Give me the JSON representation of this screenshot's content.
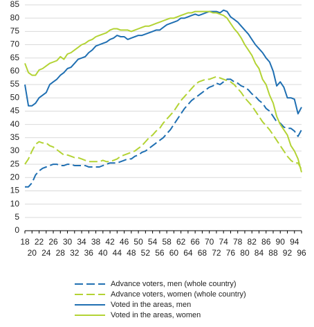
{
  "chart_data": {
    "type": "line",
    "x": [
      18,
      19,
      20,
      21,
      22,
      23,
      24,
      25,
      26,
      27,
      28,
      29,
      30,
      31,
      32,
      33,
      34,
      35,
      36,
      37,
      38,
      39,
      40,
      41,
      42,
      43,
      44,
      45,
      46,
      47,
      48,
      49,
      50,
      51,
      52,
      53,
      54,
      55,
      56,
      57,
      58,
      59,
      60,
      61,
      62,
      63,
      64,
      65,
      66,
      67,
      68,
      69,
      70,
      71,
      72,
      73,
      74,
      75,
      76,
      77,
      78,
      79,
      80,
      81,
      82,
      83,
      84,
      85,
      86,
      87,
      88,
      89,
      90,
      91,
      92,
      93,
      94,
      95,
      96
    ],
    "xlim": [
      18,
      96
    ],
    "xticks": [
      18,
      20,
      22,
      24,
      26,
      28,
      30,
      32,
      34,
      36,
      38,
      40,
      42,
      44,
      46,
      48,
      50,
      52,
      54,
      56,
      58,
      60,
      62,
      64,
      66,
      68,
      70,
      72,
      74,
      76,
      78,
      80,
      82,
      84,
      86,
      88,
      90,
      92,
      94,
      96
    ],
    "ylim": [
      0,
      85
    ],
    "yticks": [
      0,
      5,
      10,
      15,
      20,
      25,
      30,
      35,
      40,
      45,
      50,
      55,
      60,
      65,
      70,
      75,
      80,
      85
    ],
    "grid": true,
    "legend": "bottom",
    "series": [
      {
        "name": "Advance voters, men (whole country)",
        "color": "#1f6fb2",
        "dashed": true,
        "values": [
          16.5,
          16.5,
          18,
          21,
          22.5,
          23.5,
          24,
          24.5,
          25,
          25,
          24.5,
          24.5,
          25,
          25,
          24.5,
          24.5,
          24.5,
          24.5,
          24,
          24,
          24,
          24,
          24.5,
          25,
          25.5,
          25.5,
          25.5,
          26,
          26.5,
          27,
          27,
          28,
          28.5,
          29.5,
          30,
          31,
          32,
          33,
          34,
          35,
          36.5,
          38,
          40,
          42,
          44,
          46,
          47.5,
          49,
          50,
          51,
          52,
          53,
          54,
          54.5,
          55.5,
          55,
          56,
          57,
          57,
          56,
          55.5,
          54.5,
          54,
          53,
          51.5,
          50.5,
          49,
          48,
          46,
          45,
          43,
          41,
          40.5,
          39,
          38.5,
          38.5,
          37.5,
          35.5,
          38
        ]
      },
      {
        "name": "Advance voters, women (whole country)",
        "color": "#b3d334",
        "dashed": true,
        "values": [
          25,
          27,
          30,
          32.5,
          33.5,
          33,
          33,
          32,
          31.5,
          30.5,
          29.5,
          28.5,
          28.5,
          28,
          27.5,
          27.5,
          27,
          26.5,
          26,
          26,
          26,
          26,
          26.5,
          26,
          26,
          26.5,
          27,
          28,
          28.5,
          29,
          29.5,
          30,
          31,
          32,
          33.5,
          35,
          36,
          37.5,
          38.5,
          40.5,
          42,
          43.5,
          45,
          47,
          49,
          50.5,
          52,
          53.5,
          55,
          56,
          56.5,
          57,
          57,
          57.5,
          58,
          57.5,
          57,
          56.5,
          56,
          55,
          53.5,
          52,
          50,
          48.5,
          47,
          45,
          43,
          41,
          39.5,
          38,
          36,
          34,
          32,
          30,
          28,
          26.5,
          25.5,
          25.5,
          23
        ]
      },
      {
        "name": "Voted in the areas, men",
        "color": "#1f6fb2",
        "dashed": false,
        "values": [
          55,
          47,
          47,
          48,
          50,
          51,
          52,
          55,
          56,
          57,
          58.5,
          59.5,
          61,
          61.5,
          63,
          64.5,
          65,
          65.5,
          67,
          68,
          69.5,
          70,
          70.5,
          71,
          72,
          72.5,
          73.5,
          73,
          73,
          72,
          72.5,
          73,
          73.5,
          73.5,
          74,
          74.5,
          75,
          75.5,
          75.5,
          76.5,
          77.5,
          78,
          78.5,
          79,
          80,
          80,
          80.5,
          81,
          81.5,
          81,
          81.5,
          82,
          82.5,
          82.5,
          82.5,
          82,
          83,
          82.5,
          80.5,
          79.5,
          78.5,
          77,
          75.5,
          74,
          72,
          70,
          68.5,
          67,
          65,
          63.5,
          60,
          54.5,
          56,
          54,
          50,
          50,
          49.5,
          44,
          46.5
        ]
      },
      {
        "name": "Voted in the areas, women",
        "color": "#b3d334",
        "dashed": false,
        "values": [
          63,
          59.5,
          58.5,
          58.5,
          60.5,
          61,
          62,
          63,
          63.5,
          64,
          65.5,
          64.5,
          66.5,
          67,
          68,
          69,
          70,
          70.5,
          71.5,
          72,
          73,
          73.5,
          74,
          74.5,
          75.5,
          76,
          76,
          75.5,
          75.5,
          75.5,
          75,
          75.5,
          76,
          76.5,
          77,
          77,
          77.5,
          78,
          78.5,
          79,
          79.5,
          80,
          80,
          80.5,
          81,
          81.5,
          82,
          82,
          82.5,
          82.5,
          82.5,
          82.5,
          82.5,
          82,
          82,
          81.5,
          81,
          80,
          78,
          76,
          74.5,
          72.5,
          70,
          68,
          66,
          63,
          61,
          57,
          55,
          51,
          48,
          43,
          40,
          38,
          36,
          32,
          30,
          27,
          22
        ]
      }
    ]
  }
}
